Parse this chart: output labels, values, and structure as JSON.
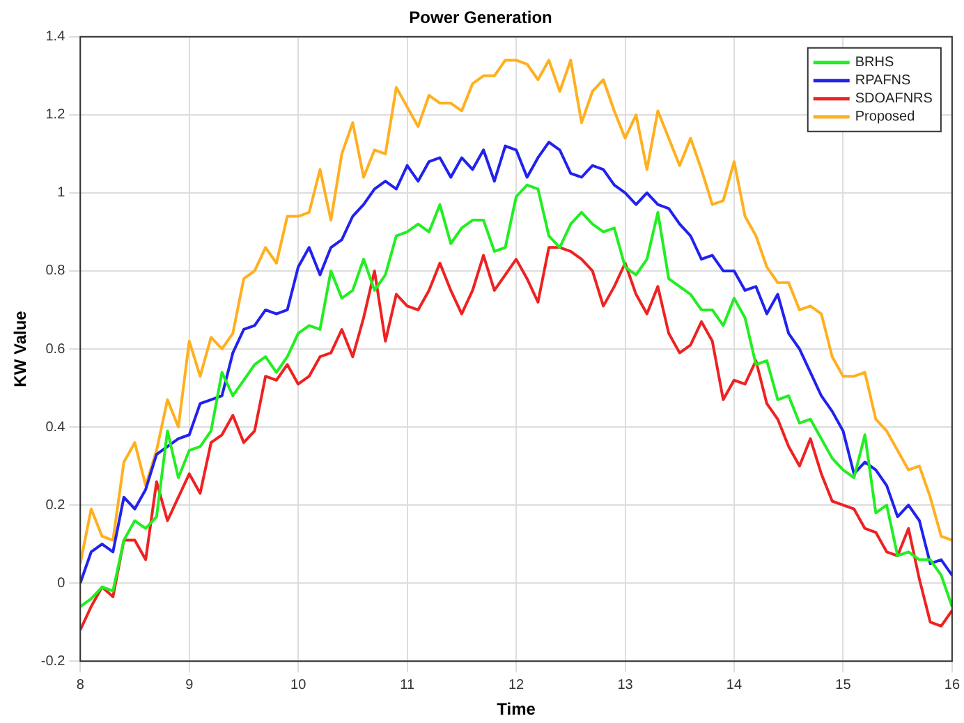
{
  "chart_data": {
    "type": "line",
    "title": "Power Generation",
    "xlabel": "Time",
    "ylabel": "KW Value",
    "x": [
      8.0,
      8.1,
      8.2,
      8.3,
      8.4,
      8.5,
      8.6,
      8.7,
      8.8,
      8.9,
      9.0,
      9.1,
      9.2,
      9.3,
      9.4,
      9.5,
      9.6,
      9.7,
      9.8,
      9.9,
      10.0,
      10.1,
      10.2,
      10.3,
      10.4,
      10.5,
      10.6,
      10.7,
      10.8,
      10.9,
      11.0,
      11.1,
      11.2,
      11.3,
      11.4,
      11.5,
      11.6,
      11.7,
      11.8,
      11.9,
      12.0,
      12.1,
      12.2,
      12.3,
      12.4,
      12.5,
      12.6,
      12.7,
      12.8,
      12.9,
      13.0,
      13.1,
      13.2,
      13.3,
      13.4,
      13.5,
      13.6,
      13.7,
      13.8,
      13.9,
      14.0,
      14.1,
      14.2,
      14.3,
      14.4,
      14.5,
      14.6,
      14.7,
      14.8,
      14.9,
      15.0,
      15.1,
      15.2,
      15.3,
      15.4,
      15.5,
      15.6,
      15.7,
      15.8,
      15.9,
      16.0
    ],
    "series": [
      {
        "name": "BRHS",
        "color": "#22ee22",
        "values": [
          -0.06,
          -0.04,
          -0.01,
          -0.02,
          0.11,
          0.16,
          0.14,
          0.17,
          0.39,
          0.27,
          0.34,
          0.35,
          0.39,
          0.54,
          0.48,
          0.52,
          0.56,
          0.58,
          0.54,
          0.58,
          0.64,
          0.66,
          0.65,
          0.8,
          0.73,
          0.75,
          0.83,
          0.75,
          0.79,
          0.89,
          0.9,
          0.92,
          0.9,
          0.97,
          0.87,
          0.91,
          0.93,
          0.93,
          0.85,
          0.86,
          0.99,
          1.02,
          1.01,
          0.89,
          0.86,
          0.92,
          0.95,
          0.92,
          0.9,
          0.91,
          0.81,
          0.79,
          0.83,
          0.95,
          0.78,
          0.76,
          0.74,
          0.7,
          0.7,
          0.66,
          0.73,
          0.68,
          0.56,
          0.57,
          0.47,
          0.48,
          0.41,
          0.42,
          0.37,
          0.32,
          0.29,
          0.27,
          0.38,
          0.18,
          0.2,
          0.07,
          0.08,
          0.06,
          0.06,
          0.02,
          -0.06
        ]
      },
      {
        "name": "RPAFNS",
        "color": "#2222ee",
        "values": [
          0.0,
          0.08,
          0.1,
          0.08,
          0.22,
          0.19,
          0.24,
          0.33,
          0.35,
          0.37,
          0.38,
          0.46,
          0.47,
          0.48,
          0.59,
          0.65,
          0.66,
          0.7,
          0.69,
          0.7,
          0.81,
          0.86,
          0.79,
          0.86,
          0.88,
          0.94,
          0.97,
          1.01,
          1.03,
          1.01,
          1.07,
          1.03,
          1.08,
          1.09,
          1.04,
          1.09,
          1.06,
          1.11,
          1.03,
          1.12,
          1.11,
          1.04,
          1.09,
          1.13,
          1.11,
          1.05,
          1.04,
          1.07,
          1.06,
          1.02,
          1.0,
          0.97,
          1.0,
          0.97,
          0.96,
          0.92,
          0.89,
          0.83,
          0.84,
          0.8,
          0.8,
          0.75,
          0.76,
          0.69,
          0.74,
          0.64,
          0.6,
          0.54,
          0.48,
          0.44,
          0.39,
          0.28,
          0.31,
          0.29,
          0.25,
          0.17,
          0.2,
          0.16,
          0.05,
          0.06,
          0.02
        ]
      },
      {
        "name": "SDOAFNRS",
        "color": "#ee2222",
        "values": [
          -0.12,
          -0.06,
          -0.01,
          -0.035,
          0.11,
          0.11,
          0.06,
          0.26,
          0.16,
          0.22,
          0.28,
          0.23,
          0.36,
          0.38,
          0.43,
          0.36,
          0.39,
          0.53,
          0.52,
          0.56,
          0.51,
          0.53,
          0.58,
          0.59,
          0.65,
          0.58,
          0.68,
          0.8,
          0.62,
          0.74,
          0.71,
          0.7,
          0.75,
          0.82,
          0.75,
          0.69,
          0.75,
          0.84,
          0.75,
          0.79,
          0.83,
          0.78,
          0.72,
          0.86,
          0.86,
          0.85,
          0.83,
          0.8,
          0.71,
          0.76,
          0.82,
          0.74,
          0.69,
          0.76,
          0.64,
          0.59,
          0.61,
          0.67,
          0.62,
          0.47,
          0.52,
          0.51,
          0.57,
          0.46,
          0.42,
          0.35,
          0.3,
          0.37,
          0.28,
          0.21,
          0.2,
          0.19,
          0.14,
          0.13,
          0.08,
          0.07,
          0.14,
          0.01,
          -0.1,
          -0.11,
          -0.07
        ]
      },
      {
        "name": "Proposed",
        "color": "#ffb020",
        "values": [
          0.05,
          0.19,
          0.12,
          0.11,
          0.31,
          0.36,
          0.25,
          0.34,
          0.47,
          0.4,
          0.62,
          0.53,
          0.63,
          0.6,
          0.64,
          0.78,
          0.8,
          0.86,
          0.82,
          0.94,
          0.94,
          0.95,
          1.06,
          0.93,
          1.1,
          1.18,
          1.04,
          1.11,
          1.1,
          1.27,
          1.22,
          1.17,
          1.25,
          1.23,
          1.23,
          1.21,
          1.28,
          1.3,
          1.3,
          1.34,
          1.34,
          1.33,
          1.29,
          1.34,
          1.26,
          1.34,
          1.18,
          1.26,
          1.29,
          1.21,
          1.14,
          1.2,
          1.06,
          1.21,
          1.14,
          1.07,
          1.14,
          1.06,
          0.97,
          0.98,
          1.08,
          0.94,
          0.89,
          0.81,
          0.77,
          0.77,
          0.7,
          0.71,
          0.69,
          0.58,
          0.53,
          0.53,
          0.54,
          0.42,
          0.39,
          0.34,
          0.29,
          0.3,
          0.22,
          0.12,
          0.11
        ]
      }
    ],
    "xlim": [
      8,
      16
    ],
    "xticks": [
      8,
      9,
      10,
      11,
      12,
      13,
      14,
      15,
      16
    ],
    "ylim": [
      -0.2,
      1.4
    ],
    "yticks": [
      -0.2,
      0,
      0.2,
      0.4,
      0.6,
      0.8,
      1,
      1.2,
      1.4
    ],
    "grid": true,
    "legend": "top right",
    "marker": "none",
    "line_style": "solid"
  }
}
